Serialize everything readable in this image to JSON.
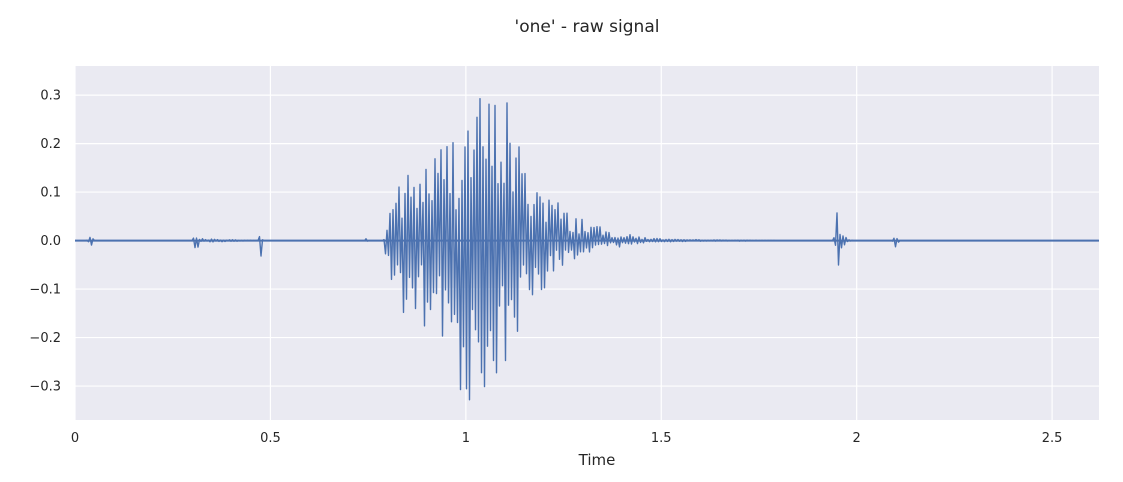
{
  "chart_data": {
    "type": "line",
    "title": "'one'  - raw signal",
    "xlabel": "Time",
    "ylabel": "",
    "xlim": [
      0,
      2.62
    ],
    "ylim": [
      -0.37,
      0.36
    ],
    "grid": true,
    "x_ticks": [
      {
        "value": 0,
        "label": "0"
      },
      {
        "value": 0.5,
        "label": "0.5"
      },
      {
        "value": 1,
        "label": "1"
      },
      {
        "value": 1.5,
        "label": "1.5"
      },
      {
        "value": 2,
        "label": "2"
      },
      {
        "value": 2.5,
        "label": "2.5"
      }
    ],
    "y_ticks": [
      {
        "value": 0.3,
        "label": "0.3"
      },
      {
        "value": 0.2,
        "label": "0.2"
      },
      {
        "value": 0.1,
        "label": "0.1"
      },
      {
        "value": 0.0,
        "label": "0.0"
      },
      {
        "value": -0.1,
        "label": "−0.1"
      },
      {
        "value": -0.2,
        "label": "−0.2"
      },
      {
        "value": -0.3,
        "label": "−0.3"
      }
    ],
    "colors": {
      "background": "#eaeaf2",
      "grid": "#ffffff",
      "line": "#4c72b0",
      "text": "#262626"
    },
    "series": [
      {
        "name": "",
        "envelope": {
          "x": [
            0.0,
            0.03,
            0.04,
            0.05,
            0.3,
            0.31,
            0.32,
            0.47,
            0.475,
            0.48,
            0.74,
            0.745,
            0.75,
            0.79,
            0.8,
            0.82,
            0.85,
            0.88,
            0.9,
            0.92,
            0.95,
            0.98,
            1.0,
            1.02,
            1.05,
            1.08,
            1.1,
            1.11,
            1.12,
            1.15,
            1.18,
            1.2,
            1.23,
            1.26,
            1.3,
            1.35,
            1.4,
            1.45,
            1.5,
            1.55,
            1.6,
            1.65,
            1.7,
            1.8,
            1.94,
            1.95,
            1.96,
            1.97,
            1.99,
            2.09,
            2.1,
            2.11,
            2.62
          ],
          "upper": [
            0.0,
            0.0,
            0.012,
            0.0,
            0.0,
            0.018,
            0.004,
            0.0,
            0.042,
            0.0,
            0.0,
            0.005,
            0.0,
            0.0,
            0.06,
            0.13,
            0.14,
            0.16,
            0.18,
            0.19,
            0.22,
            0.26,
            0.28,
            0.3,
            0.31,
            0.3,
            0.34,
            0.32,
            0.26,
            0.16,
            0.14,
            0.13,
            0.09,
            0.06,
            0.05,
            0.025,
            0.015,
            0.008,
            0.004,
            0.002,
            0.002,
            0.0015,
            0.001,
            0.0,
            0.0,
            0.065,
            0.03,
            0.008,
            0.0,
            0.0,
            0.014,
            0.0,
            0.0
          ],
          "lower": [
            0.0,
            0.0,
            -0.012,
            0.0,
            0.0,
            -0.022,
            -0.004,
            0.0,
            -0.044,
            0.0,
            0.0,
            -0.005,
            0.0,
            0.0,
            -0.09,
            -0.16,
            -0.17,
            -0.19,
            -0.22,
            -0.23,
            -0.27,
            -0.3,
            -0.33,
            -0.34,
            -0.32,
            -0.3,
            -0.335,
            -0.31,
            -0.24,
            -0.14,
            -0.12,
            -0.1,
            -0.07,
            -0.05,
            -0.04,
            -0.02,
            -0.012,
            -0.006,
            -0.003,
            -0.002,
            -0.0015,
            -0.001,
            -0.001,
            0.0,
            0.0,
            -0.065,
            -0.03,
            -0.008,
            0.0,
            0.0,
            -0.014,
            0.0,
            0.0
          ]
        }
      }
    ]
  }
}
